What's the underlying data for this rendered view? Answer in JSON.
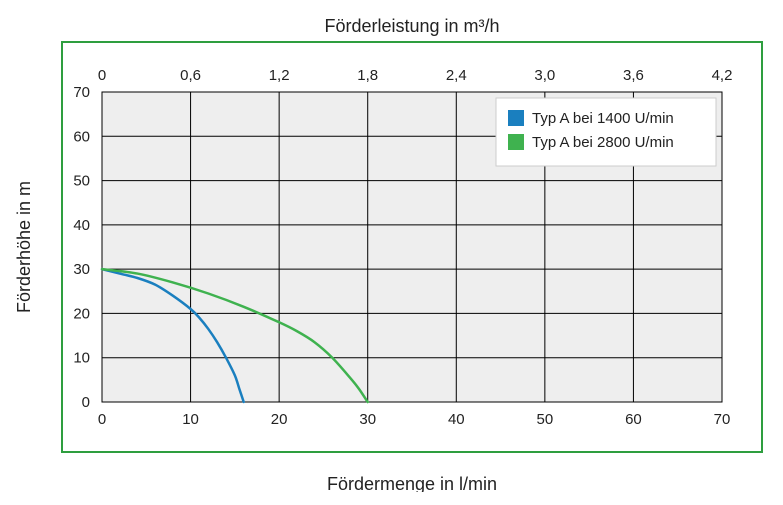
{
  "chart": {
    "type": "line",
    "border_color": "#2e9e3f",
    "plot_background": "#eeeeee",
    "grid_color": "#000000",
    "grid_width": 1,
    "font_family": "Arial",
    "title_fontsize": 18,
    "tick_fontsize": 15,
    "legend_fontsize": 15,
    "y_axis": {
      "label": "Förderhöhe in m",
      "lim": [
        0,
        70
      ],
      "ticks": [
        0,
        10,
        20,
        30,
        40,
        50,
        60,
        70
      ]
    },
    "x_axis_bottom": {
      "label": "Fördermenge in l/min",
      "lim": [
        0,
        70
      ],
      "ticks": [
        0,
        10,
        20,
        30,
        40,
        50,
        60,
        70
      ]
    },
    "x_axis_top": {
      "label": "Förderleistung in m³/h",
      "lim": [
        0,
        4.2
      ],
      "ticks": [
        "0",
        "0,6",
        "1,2",
        "1,8",
        "2,4",
        "3,0",
        "3,6",
        "4,2"
      ]
    },
    "legend": {
      "position": "top-right",
      "background": "#ffffff",
      "border_color": "#cccccc",
      "items": [
        {
          "label": "Typ A bei 1400 U/min",
          "color": "#1a7fbf"
        },
        {
          "label": "Typ A bei 2800 U/min",
          "color": "#3fb24f"
        }
      ]
    },
    "series": [
      {
        "name": "Typ A bei 1400 U/min",
        "color": "#1a7fbf",
        "line_width": 2.5,
        "data_x": [
          0,
          2,
          4,
          6,
          8,
          10,
          11,
          12,
          13,
          14,
          15,
          15.5,
          16
        ],
        "data_y": [
          30,
          29,
          28,
          26.5,
          24,
          21,
          19,
          16.5,
          13.5,
          10,
          6,
          3,
          0
        ]
      },
      {
        "name": "Typ A bei 2800 U/min",
        "color": "#3fb24f",
        "line_width": 2.5,
        "data_x": [
          0,
          4,
          8,
          12,
          16,
          20,
          22,
          24,
          26,
          28,
          29,
          30
        ],
        "data_y": [
          30,
          29,
          27,
          24.5,
          21.5,
          18,
          16,
          13.5,
          10,
          5.5,
          3,
          0
        ]
      }
    ]
  }
}
